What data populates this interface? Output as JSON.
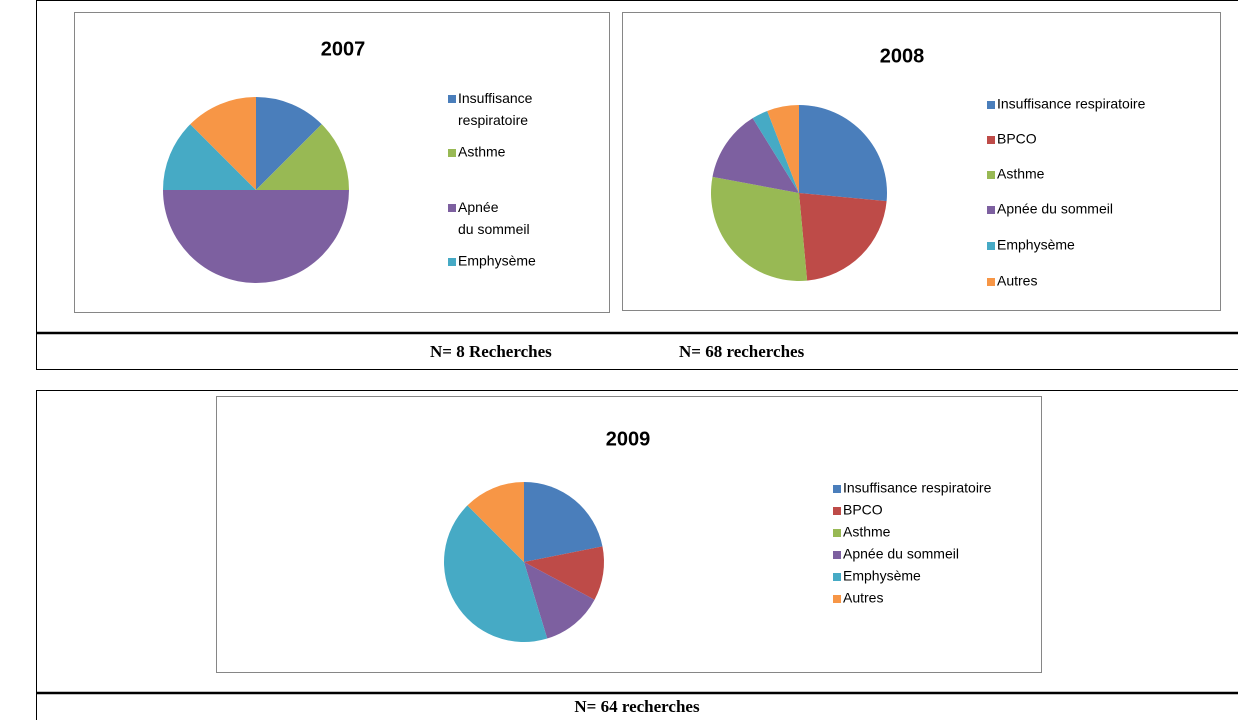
{
  "chart_data": [
    {
      "type": "pie",
      "title": "2007",
      "categories": [
        "Insuffisance respiratoire",
        "Asthme",
        "Apnée du sommeil",
        "Emphysème",
        null
      ],
      "values": [
        1,
        1,
        4,
        1,
        1
      ],
      "colors": [
        "#4a7ebb",
        "#98b954",
        "#7d60a0",
        "#46aac5",
        "#f79646"
      ]
    },
    {
      "type": "pie",
      "title": "2008",
      "categories": [
        "Insuffisance respiratoire",
        "BPCO",
        "Asthme",
        "Apnée du sommeil",
        "Emphysème",
        "Autres"
      ],
      "values": [
        18,
        15,
        20,
        9,
        2,
        4
      ],
      "colors": [
        "#4a7ebb",
        "#be4b48",
        "#98b954",
        "#7d60a0",
        "#46aac5",
        "#f79646"
      ]
    },
    {
      "type": "pie",
      "title": "2009",
      "categories": [
        "Insuffisance respiratoire",
        "BPCO",
        "Asthme",
        "Apnée du sommeil",
        "Emphysème",
        "Autres"
      ],
      "values": [
        14,
        7,
        0,
        8,
        27,
        8
      ],
      "colors": [
        "#4a7ebb",
        "#be4b48",
        "#98b954",
        "#7d60a0",
        "#46aac5",
        "#f79646"
      ]
    }
  ],
  "captions": [
    "N= 8 Recherches",
    "N= 68 recherches",
    "N= 64 recherches"
  ]
}
